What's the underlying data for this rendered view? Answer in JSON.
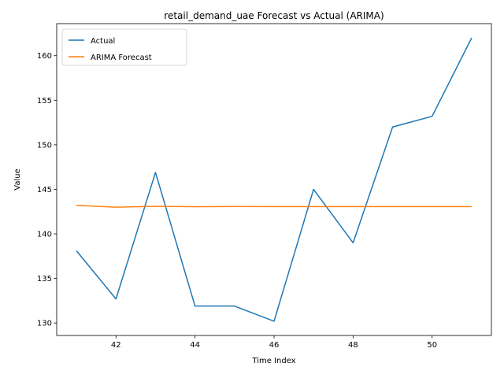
{
  "chart_data": {
    "type": "line",
    "title": "retail_demand_uae Forecast vs Actual (ARIMA)",
    "xlabel": "Time Index",
    "ylabel": "Value",
    "x": [
      41,
      42,
      43,
      44,
      45,
      46,
      47,
      48,
      49,
      50,
      51
    ],
    "xlim": [
      40.5,
      51.5
    ],
    "ylim": [
      128.6,
      163.6
    ],
    "xticks": [
      42,
      44,
      46,
      48,
      50
    ],
    "yticks": [
      130,
      135,
      140,
      145,
      150,
      155,
      160
    ],
    "grid": false,
    "legend_position": "top-left",
    "series": [
      {
        "name": "Actual",
        "color": "#1f77b4",
        "values": [
          138.1,
          132.7,
          146.9,
          131.9,
          131.9,
          130.2,
          145.0,
          139.0,
          152.0,
          153.2,
          162.0
        ]
      },
      {
        "name": "ARIMA Forecast",
        "color": "#ff7f0e",
        "values": [
          143.2,
          143.0,
          143.1,
          143.05,
          143.07,
          143.06,
          143.06,
          143.06,
          143.06,
          143.06,
          143.06
        ]
      }
    ]
  }
}
